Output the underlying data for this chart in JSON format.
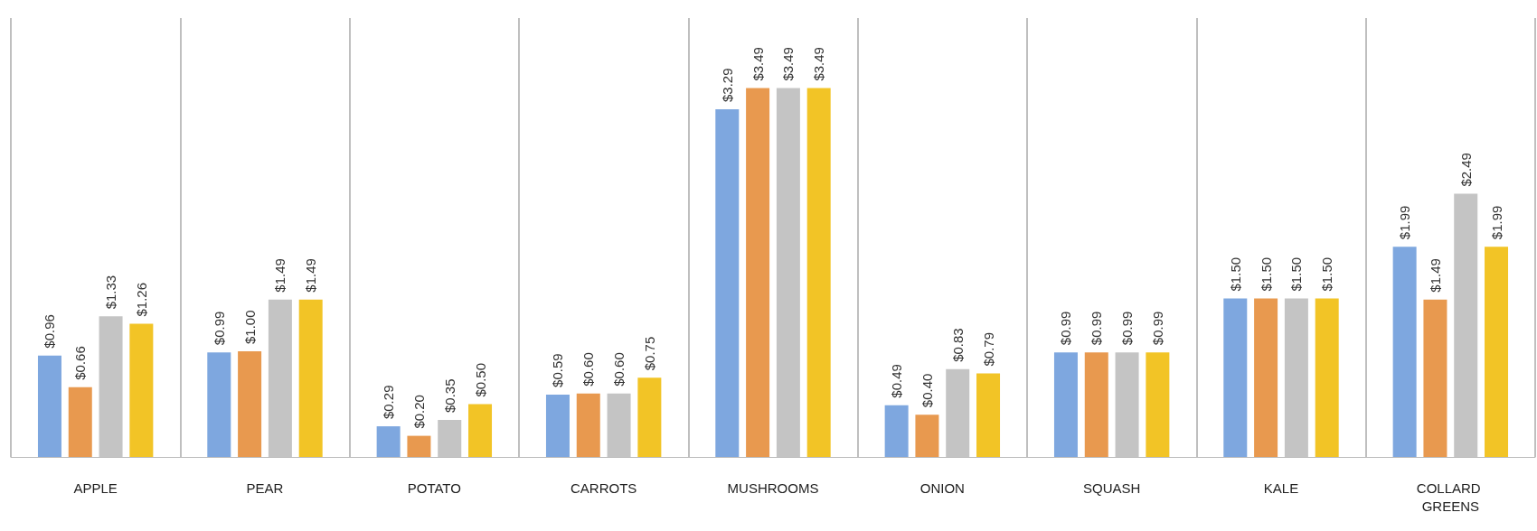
{
  "chart_data": {
    "type": "bar",
    "categories": [
      "APPLE",
      "PEAR",
      "POTATO",
      "CARROTS",
      "MUSHROOMS",
      "ONION",
      "SQUASH",
      "KALE",
      "COLLARD GREENS"
    ],
    "series": [
      {
        "color": "#7ea7df",
        "values": [
          0.96,
          0.99,
          0.29,
          0.59,
          3.29,
          0.49,
          0.99,
          1.5,
          1.99
        ],
        "value_labels": [
          "$0.96",
          "$0.99",
          "$0.29",
          "$0.59",
          "$3.29",
          "$0.49",
          "$0.99",
          "$1.50",
          "$1.99"
        ]
      },
      {
        "color": "#e8994f",
        "values": [
          0.66,
          1.0,
          0.2,
          0.6,
          3.49,
          0.4,
          0.99,
          1.5,
          1.49
        ],
        "value_labels": [
          "$0.66",
          "$1.00",
          "$0.20",
          "$0.60",
          "$3.49",
          "$0.40",
          "$0.99",
          "$1.50",
          "$1.49"
        ]
      },
      {
        "color": "#c4c4c4",
        "values": [
          1.33,
          1.49,
          0.35,
          0.6,
          3.49,
          0.83,
          0.99,
          1.5,
          2.49
        ],
        "value_labels": [
          "$1.33",
          "$1.49",
          "$0.35",
          "$0.60",
          "$3.49",
          "$0.83",
          "$0.99",
          "$1.50",
          "$2.49"
        ]
      },
      {
        "color": "#f2c426",
        "values": [
          1.26,
          1.49,
          0.5,
          0.75,
          3.49,
          0.79,
          0.99,
          1.5,
          1.99
        ],
        "value_labels": [
          "$1.26",
          "$1.49",
          "$0.50",
          "$0.75",
          "$3.49",
          "$0.79",
          "$0.99",
          "$1.50",
          "$1.99"
        ]
      }
    ],
    "grid": "x"
  }
}
